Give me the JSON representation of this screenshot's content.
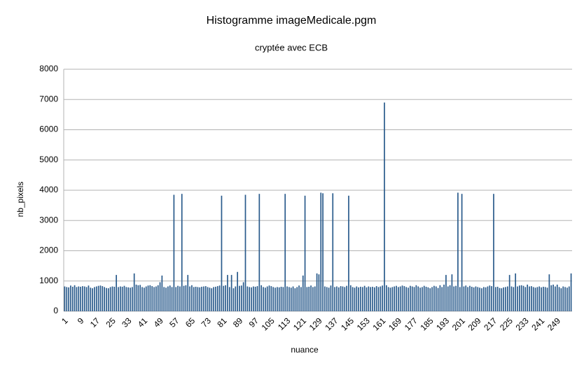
{
  "chart_data": {
    "type": "bar",
    "title": "Histogramme imageMedicale.pgm",
    "subtitle": "cryptée avec ECB",
    "x_label": "nuance",
    "y_label": "nb_pixels",
    "color": "#2a5b8c",
    "grid": true,
    "ylim": [
      0,
      8000
    ],
    "yticks": [
      0,
      1000,
      2000,
      3000,
      4000,
      5000,
      6000,
      7000,
      8000
    ],
    "categories": [
      "1",
      null,
      null,
      null,
      null,
      null,
      null,
      null,
      "9",
      null,
      null,
      null,
      null,
      null,
      null,
      null,
      "17",
      null,
      null,
      null,
      null,
      null,
      null,
      null,
      "25",
      null,
      null,
      null,
      null,
      null,
      null,
      null,
      "33",
      null,
      null,
      null,
      null,
      null,
      null,
      null,
      "41",
      null,
      null,
      null,
      null,
      null,
      null,
      null,
      "49",
      null,
      null,
      null,
      null,
      null,
      null,
      null,
      "57",
      null,
      null,
      null,
      null,
      null,
      null,
      null,
      "65",
      null,
      null,
      null,
      null,
      null,
      null,
      null,
      "73",
      null,
      null,
      null,
      null,
      null,
      null,
      null,
      "81",
      null,
      null,
      null,
      null,
      null,
      null,
      null,
      "89",
      null,
      null,
      null,
      null,
      null,
      null,
      null,
      "97",
      null,
      null,
      null,
      null,
      null,
      null,
      null,
      "105",
      null,
      null,
      null,
      null,
      null,
      null,
      null,
      "113",
      null,
      null,
      null,
      null,
      null,
      null,
      null,
      "121",
      null,
      null,
      null,
      null,
      null,
      null,
      null,
      "129",
      null,
      null,
      null,
      null,
      null,
      null,
      null,
      "137",
      null,
      null,
      null,
      null,
      null,
      null,
      null,
      "145",
      null,
      null,
      null,
      null,
      null,
      null,
      null,
      "153",
      null,
      null,
      null,
      null,
      null,
      null,
      null,
      "161",
      null,
      null,
      null,
      null,
      null,
      null,
      null,
      "169",
      null,
      null,
      null,
      null,
      null,
      null,
      null,
      "177",
      null,
      null,
      null,
      null,
      null,
      null,
      null,
      "185",
      null,
      null,
      null,
      null,
      null,
      null,
      null,
      "193",
      null,
      null,
      null,
      null,
      null,
      null,
      null,
      "201",
      null,
      null,
      null,
      null,
      null,
      null,
      null,
      "209",
      null,
      null,
      null,
      null,
      null,
      null,
      null,
      "217",
      null,
      null,
      null,
      null,
      null,
      null,
      null,
      "225",
      null,
      null,
      null,
      null,
      null,
      null,
      null,
      "233",
      null,
      null,
      null,
      null,
      null,
      null,
      null,
      "241",
      null,
      null,
      null,
      null,
      null,
      null,
      null,
      "249",
      null,
      null,
      null,
      null,
      null,
      null,
      null
    ],
    "values": [
      820,
      800,
      790,
      850,
      810,
      860,
      800,
      820,
      810,
      830,
      820,
      800,
      850,
      780,
      760,
      800,
      820,
      840,
      850,
      830,
      800,
      770,
      760,
      800,
      820,
      810,
      1200,
      800,
      820,
      810,
      840,
      800,
      790,
      780,
      800,
      1250,
      880,
      860,
      870,
      800,
      780,
      820,
      850,
      860,
      830,
      800,
      820,
      860,
      960,
      1180,
      800,
      780,
      820,
      850,
      800,
      3850,
      800,
      840,
      820,
      3880,
      840,
      860,
      1200,
      820,
      860,
      800,
      810,
      800,
      790,
      810,
      820,
      830,
      800,
      780,
      760,
      800,
      810,
      830,
      850,
      3820,
      840,
      860,
      1200,
      800,
      1200,
      760,
      820,
      1300,
      840,
      850,
      960,
      3850,
      820,
      800,
      790,
      820,
      810,
      830,
      3880,
      860,
      800,
      780,
      820,
      850,
      830,
      800,
      780,
      800,
      790,
      810,
      800,
      3880,
      820,
      800,
      780,
      820,
      760,
      800,
      850,
      800,
      1180,
      3820,
      800,
      810,
      850,
      800,
      820,
      1250,
      1220,
      3920,
      3900,
      820,
      800,
      780,
      850,
      3900,
      800,
      820,
      790,
      830,
      820,
      800,
      840,
      3820,
      860,
      800,
      780,
      820,
      790,
      810,
      800,
      840,
      790,
      820,
      800,
      810,
      790,
      830,
      800,
      820,
      850,
      6900,
      860,
      800,
      780,
      800,
      820,
      840,
      800,
      820,
      850,
      830,
      800,
      780,
      840,
      820,
      800,
      860,
      820,
      780,
      800,
      840,
      810,
      790,
      760,
      800,
      840,
      820,
      770,
      860,
      800,
      880,
      1200,
      820,
      860,
      1220,
      820,
      840,
      3920,
      800,
      3880,
      820,
      850,
      800,
      840,
      810,
      790,
      820,
      800,
      780,
      760,
      800,
      790,
      820,
      850,
      830,
      3880,
      800,
      810,
      770,
      760,
      790,
      800,
      820,
      1200,
      820,
      800,
      1250,
      820,
      850,
      860,
      840,
      800,
      880,
      820,
      830,
      800,
      780,
      800,
      820,
      790,
      810,
      800,
      780,
      1220,
      860,
      880,
      820,
      880,
      800,
      760,
      820,
      800,
      780,
      820,
      1250
    ]
  }
}
